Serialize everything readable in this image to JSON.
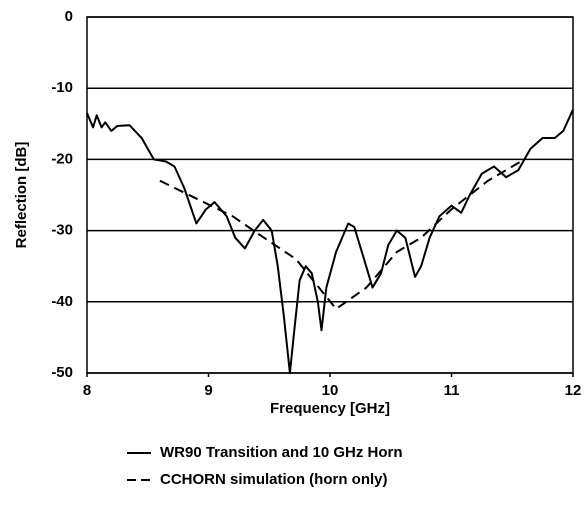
{
  "chart_data": {
    "type": "line",
    "x_label": "Frequency  [GHz]",
    "y_label": "Reflection  [dB]",
    "xlim": [
      8,
      12
    ],
    "ylim": [
      -50,
      0
    ],
    "xticks": [
      8,
      9,
      10,
      11,
      12
    ],
    "yticks": [
      0,
      -10,
      -20,
      -30,
      -40,
      -50
    ],
    "grid": true,
    "legend": "bottom",
    "series": [
      {
        "name": "WR90 Transition and 10 GHz Horn",
        "color": "#000000",
        "dash": false,
        "x": [
          8.0,
          8.05,
          8.08,
          8.12,
          8.15,
          8.2,
          8.25,
          8.35,
          8.45,
          8.55,
          8.65,
          8.72,
          8.8,
          8.9,
          8.98,
          9.05,
          9.15,
          9.22,
          9.3,
          9.38,
          9.45,
          9.52,
          9.57,
          9.62,
          9.67,
          9.7,
          9.75,
          9.8,
          9.85,
          9.9,
          9.93,
          9.97,
          10.05,
          10.15,
          10.2,
          10.28,
          10.35,
          10.42,
          10.48,
          10.55,
          10.62,
          10.7,
          10.75,
          10.82,
          10.9,
          11.0,
          11.08,
          11.15,
          11.25,
          11.35,
          11.45,
          11.55,
          11.65,
          11.75,
          11.85,
          11.92,
          12.0
        ],
        "values": [
          -13.5,
          -15.5,
          -13.8,
          -15.5,
          -14.8,
          -16,
          -15.3,
          -15.2,
          -17,
          -20,
          -20.3,
          -21,
          -24,
          -29,
          -27,
          -26,
          -28,
          -31,
          -32.5,
          -30,
          -28.5,
          -30,
          -35,
          -42,
          -50,
          -45,
          -37,
          -35,
          -36,
          -40,
          -44,
          -38,
          -33,
          -29,
          -29.5,
          -34,
          -38,
          -36,
          -32,
          -30,
          -31,
          -36.5,
          -35,
          -31,
          -28,
          -26.5,
          -27.5,
          -25,
          -22,
          -21,
          -22.5,
          -21.5,
          -18.5,
          -17,
          -17,
          -16,
          -13
        ]
      },
      {
        "name": "CCHORN simulation (horn only)",
        "color": "#000000",
        "dash": true,
        "x": [
          8.6,
          8.9,
          9.2,
          9.5,
          9.72,
          10.05,
          10.3,
          10.55,
          10.75,
          11.0,
          11.3,
          11.6
        ],
        "values": [
          -23,
          -25.5,
          -28,
          -31.5,
          -34,
          -41,
          -38,
          -33,
          -31,
          -27,
          -23,
          -20
        ]
      }
    ]
  }
}
